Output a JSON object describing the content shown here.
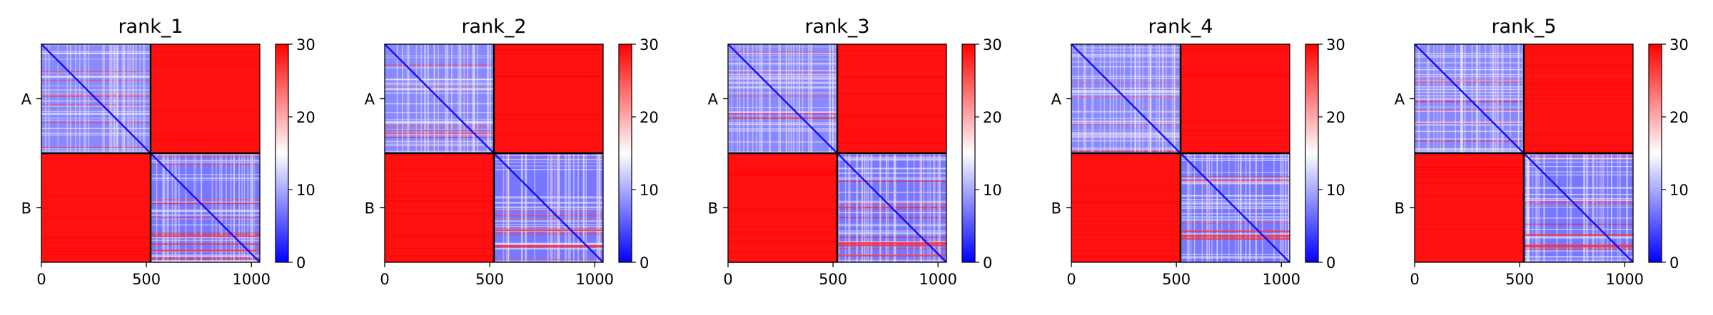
{
  "figure": {
    "colorbar": {
      "ticks": [
        0,
        10,
        20,
        30
      ],
      "tick_labels": [
        "0",
        "10",
        "20",
        "30"
      ],
      "vmin": 0,
      "vmax": 30,
      "colors": {
        "low": "#0000ff",
        "mid": "#ffffff",
        "high": "#ff0000"
      }
    }
  },
  "chart_data": [
    {
      "type": "heatmap",
      "title": "rank_1",
      "xlim": [
        0,
        1040
      ],
      "xticks": [
        0,
        500,
        1000
      ],
      "xtick_labels": [
        "0",
        "500",
        "1000"
      ],
      "chain_labels": [
        "A",
        "B"
      ],
      "chain_boundary": 520,
      "block_values": {
        "A-A": 8,
        "A-B": 29,
        "B-A": 29,
        "B-B": 7
      },
      "colorbar_range": [
        0,
        30
      ],
      "colormap": "bwr"
    },
    {
      "type": "heatmap",
      "title": "rank_2",
      "xlim": [
        0,
        1040
      ],
      "xticks": [
        0,
        500,
        1000
      ],
      "xtick_labels": [
        "0",
        "500",
        "1000"
      ],
      "chain_labels": [
        "A",
        "B"
      ],
      "chain_boundary": 520,
      "block_values": {
        "A-A": 8,
        "A-B": 29,
        "B-A": 29,
        "B-B": 7
      },
      "colorbar_range": [
        0,
        30
      ],
      "colormap": "bwr"
    },
    {
      "type": "heatmap",
      "title": "rank_3",
      "xlim": [
        0,
        1040
      ],
      "xticks": [
        0,
        500,
        1000
      ],
      "xtick_labels": [
        "0",
        "500",
        "1000"
      ],
      "chain_labels": [
        "A",
        "B"
      ],
      "chain_boundary": 520,
      "block_values": {
        "A-A": 8,
        "A-B": 29,
        "B-A": 29,
        "B-B": 7
      },
      "colorbar_range": [
        0,
        30
      ],
      "colormap": "bwr"
    },
    {
      "type": "heatmap",
      "title": "rank_4",
      "xlim": [
        0,
        1040
      ],
      "xticks": [
        0,
        500,
        1000
      ],
      "xtick_labels": [
        "0",
        "500",
        "1000"
      ],
      "chain_labels": [
        "A",
        "B"
      ],
      "chain_boundary": 520,
      "block_values": {
        "A-A": 8,
        "A-B": 29,
        "B-A": 29,
        "B-B": 7
      },
      "colorbar_range": [
        0,
        30
      ],
      "colormap": "bwr"
    },
    {
      "type": "heatmap",
      "title": "rank_5",
      "xlim": [
        0,
        1040
      ],
      "xticks": [
        0,
        500,
        1000
      ],
      "xtick_labels": [
        "0",
        "500",
        "1000"
      ],
      "chain_labels": [
        "A",
        "B"
      ],
      "chain_boundary": 520,
      "block_values": {
        "A-A": 8,
        "A-B": 29,
        "B-A": 29,
        "B-B": 7
      },
      "colorbar_range": [
        0,
        30
      ],
      "colormap": "bwr"
    }
  ]
}
